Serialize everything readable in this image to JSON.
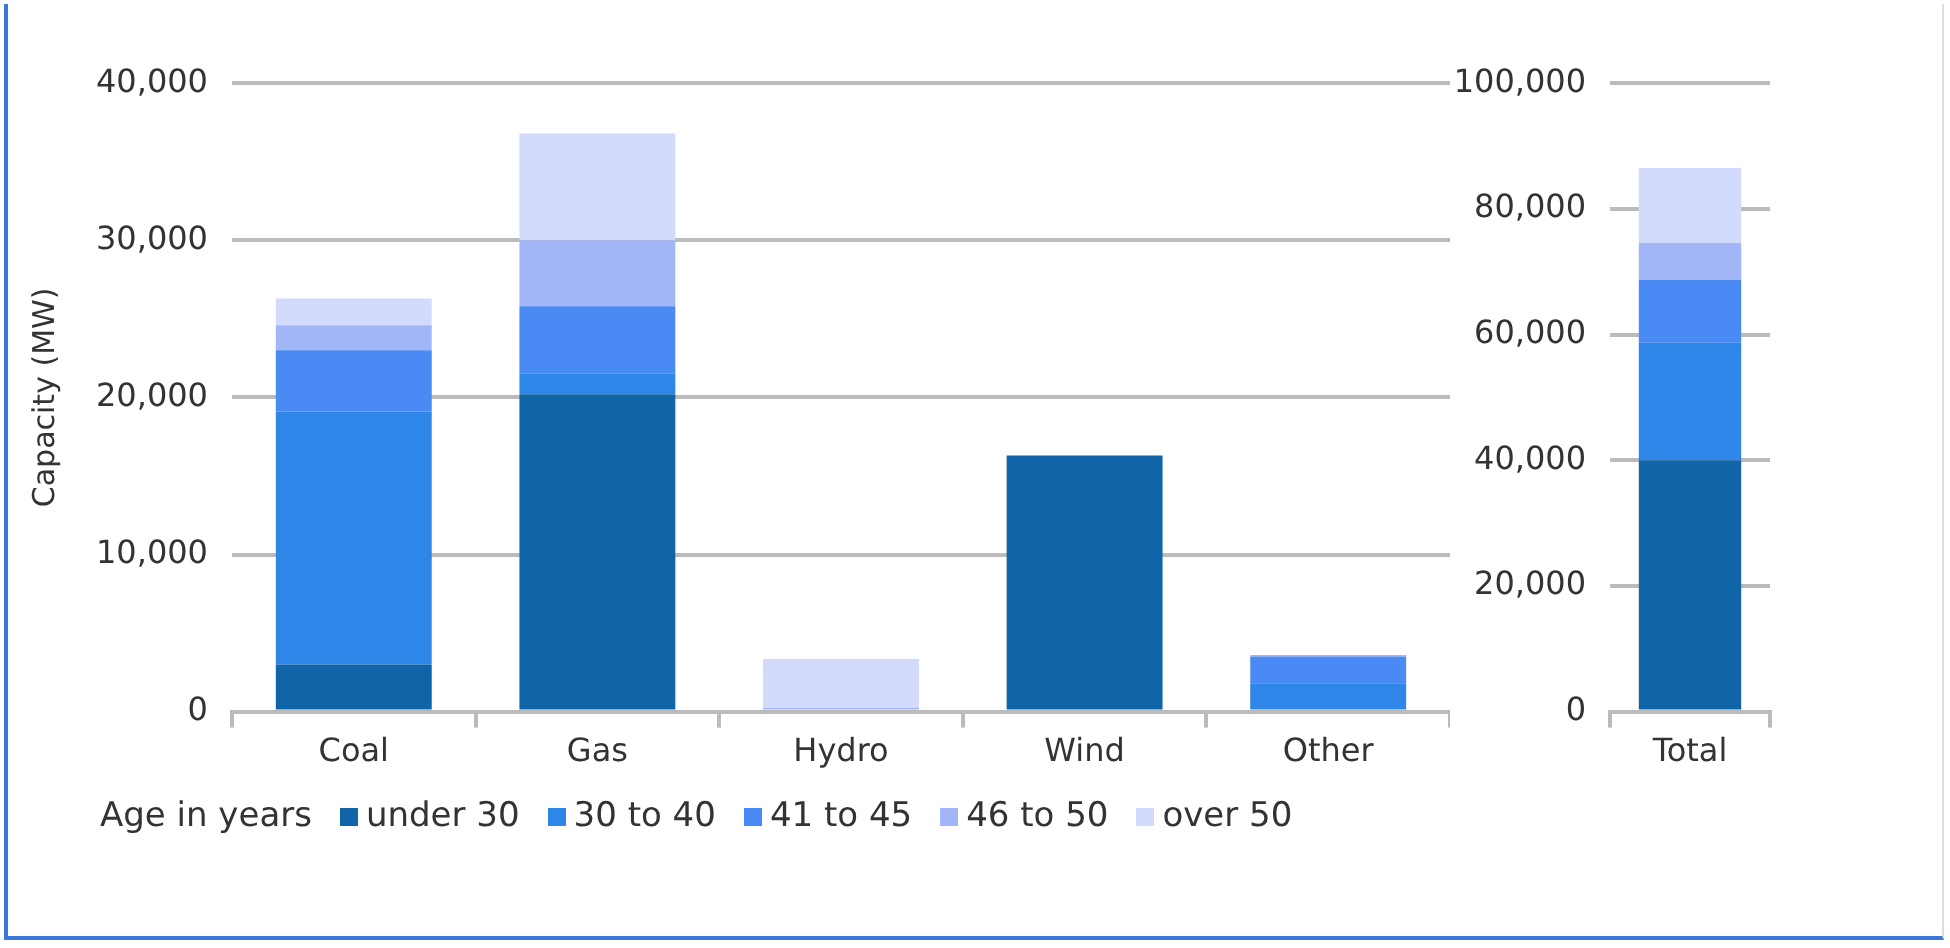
{
  "chart_data": [
    {
      "type": "bar",
      "stacked": true,
      "ylabel": "Capacity (MW)",
      "legend_title": "Age in years",
      "legend": "bottom",
      "grid": "y",
      "categories": [
        "Coal",
        "Gas",
        "Hydro",
        "Wind",
        "Other"
      ],
      "ylim": [
        0,
        40000
      ],
      "yticks": [
        {
          "value": 0,
          "label": "0"
        },
        {
          "value": 10000,
          "label": "10,000"
        },
        {
          "value": 20000,
          "label": "20,000"
        },
        {
          "value": 30000,
          "label": "30,000"
        },
        {
          "value": 40000,
          "label": "40,000"
        }
      ],
      "series": [
        {
          "name": "under 30",
          "color": "#1065a8",
          "values": [
            3000,
            20200,
            0,
            16300,
            0
          ]
        },
        {
          "name": "30 to 40",
          "color": "#2e86e8",
          "values": [
            16100,
            1300,
            0,
            0,
            1800
          ]
        },
        {
          "name": "41 to 45",
          "color": "#4a8af5",
          "values": [
            3900,
            4300,
            0,
            0,
            1700
          ]
        },
        {
          "name": "46 to 50",
          "color": "#a2b6f7",
          "values": [
            1600,
            4200,
            250,
            0,
            100
          ]
        },
        {
          "name": "over 50",
          "color": "#d2dbfb",
          "values": [
            1700,
            6800,
            3100,
            0,
            0
          ]
        }
      ]
    },
    {
      "type": "bar",
      "stacked": true,
      "grid": "y",
      "categories": [
        "Total"
      ],
      "ylim": [
        0,
        100000
      ],
      "yticks": [
        {
          "value": 0,
          "label": "0"
        },
        {
          "value": 20000,
          "label": "20,000"
        },
        {
          "value": 40000,
          "label": "40,000"
        },
        {
          "value": 60000,
          "label": "60,000"
        },
        {
          "value": 80000,
          "label": "80,000"
        },
        {
          "value": 100000,
          "label": "100,000"
        }
      ],
      "series": [
        {
          "color": "#1065a8",
          "values": [
            40000
          ]
        },
        {
          "color": "#2e86e8",
          "values": [
            18700
          ]
        },
        {
          "color": "#4a8af5",
          "values": [
            10000
          ]
        },
        {
          "color": "#a2b6f7",
          "values": [
            5900
          ]
        },
        {
          "color": "#d2dbfb",
          "values": [
            11900
          ]
        }
      ]
    }
  ]
}
